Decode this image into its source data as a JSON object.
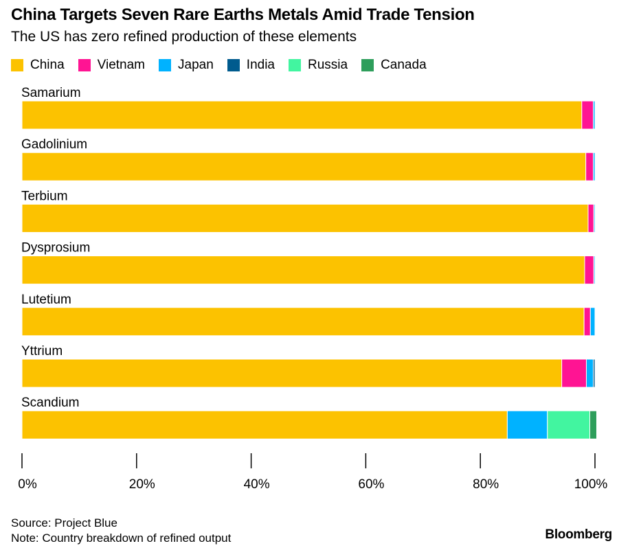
{
  "chart_data": {
    "type": "bar",
    "orientation": "horizontal",
    "stacked": true,
    "title": "China Targets Seven Rare Earths Metals Amid Trade Tension",
    "subtitle": "The US has zero refined production of these elements",
    "categories": [
      "Samarium",
      "Gadolinium",
      "Terbium",
      "Dysprosium",
      "Lutetium",
      "Yttrium",
      "Scandium"
    ],
    "series": [
      {
        "name": "China",
        "color": "#fcc200",
        "values": [
          97.7,
          98.4,
          98.8,
          98.2,
          98.1,
          94.2,
          84.7
        ]
      },
      {
        "name": "Vietnam",
        "color": "#ff1493",
        "values": [
          2.0,
          1.3,
          1.0,
          1.6,
          1.1,
          4.3,
          0
        ]
      },
      {
        "name": "Japan",
        "color": "#00b2ff",
        "values": [
          0.3,
          0.3,
          0.2,
          0.2,
          0.8,
          1.2,
          7.0
        ]
      },
      {
        "name": "India",
        "color": "#005b8e",
        "values": [
          0,
          0,
          0,
          0,
          0,
          0.3,
          0
        ]
      },
      {
        "name": "Russia",
        "color": "#42f5a0",
        "values": [
          0,
          0,
          0,
          0,
          0,
          0,
          7.4
        ]
      },
      {
        "name": "Canada",
        "color": "#2e9e5b",
        "values": [
          0,
          0,
          0,
          0,
          0,
          0,
          1.2
        ]
      }
    ],
    "xlim": [
      0,
      100
    ],
    "xticks": [
      "0%",
      "20%",
      "40%",
      "60%",
      "80%",
      "100%"
    ],
    "legend_position": "top-left",
    "grid": false
  },
  "footer": {
    "source": "Source: Project Blue",
    "note": "Note: Country breakdown of refined output",
    "brand": "Bloomberg"
  }
}
